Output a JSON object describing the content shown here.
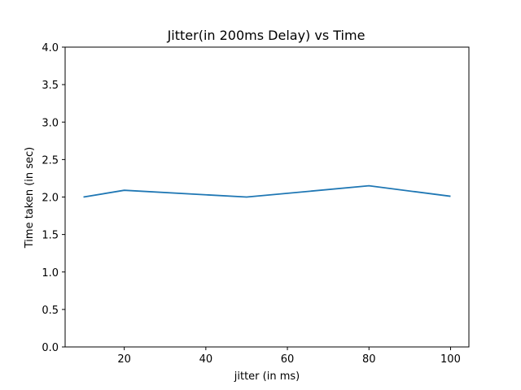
{
  "chart_data": {
    "type": "line",
    "title": "Jitter(in 200ms Delay) vs Time",
    "xlabel": "jitter (in ms)",
    "ylabel": "Time taken (in sec)",
    "xlim": [
      5.5,
      104.5
    ],
    "ylim": [
      0.0,
      4.0
    ],
    "xticks": [
      20,
      40,
      60,
      80,
      100
    ],
    "xtick_labels": [
      "20",
      "40",
      "60",
      "80",
      "100"
    ],
    "yticks": [
      0.0,
      0.5,
      1.0,
      1.5,
      2.0,
      2.5,
      3.0,
      3.5,
      4.0
    ],
    "ytick_labels": [
      "0.0",
      "0.5",
      "1.0",
      "1.5",
      "2.0",
      "2.5",
      "3.0",
      "3.5",
      "4.0"
    ],
    "grid": false,
    "series": [
      {
        "color": "#1f77b4",
        "x": [
          10,
          20,
          50,
          80,
          100
        ],
        "y": [
          2.0,
          2.09,
          2.0,
          2.15,
          2.01
        ]
      }
    ]
  }
}
